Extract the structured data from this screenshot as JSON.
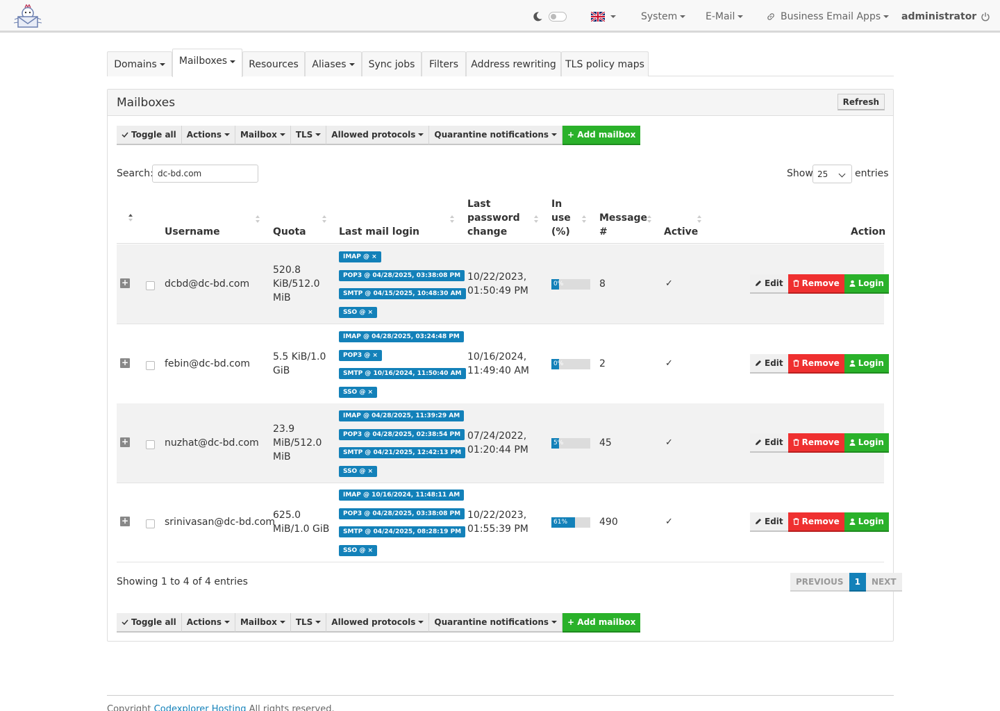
{
  "navbar": {
    "language": "EN",
    "system": "System",
    "email": "E-Mail",
    "apps": "Business Email Apps",
    "user": "administrator"
  },
  "tabs": [
    "Domains",
    "Mailboxes",
    "Resources",
    "Aliases",
    "Sync jobs",
    "Filters",
    "Address rewriting",
    "TLS policy maps"
  ],
  "panel": {
    "title": "Mailboxes",
    "refresh": "Refresh"
  },
  "toolbar": {
    "toggle_all": "Toggle all",
    "actions": "Actions",
    "mailbox": "Mailbox",
    "tls": "TLS",
    "allowed_protocols": "Allowed protocols",
    "quarantine": "Quarantine notifications",
    "add_mailbox": "+ Add mailbox"
  },
  "search": {
    "label": "Search:",
    "value": "dc-bd.com"
  },
  "length": {
    "show": "Show",
    "value": "25",
    "entries": "entries"
  },
  "columns": {
    "username": "Username",
    "quota": "Quota",
    "last_login": "Last mail login",
    "last_pw_1": "Last",
    "last_pw_2": "password",
    "last_pw_3": "change",
    "inuse_1": "In",
    "inuse_2": "use",
    "inuse_3": "(%)",
    "msg_1": "Message",
    "msg_2": "#",
    "active": "Active",
    "action": "Action"
  },
  "rows": [
    {
      "username": "dcbd@dc-bd.com",
      "quota": [
        "520.8",
        "KiB/512.0",
        "MiB"
      ],
      "logins": [
        "IMAP @ ×",
        "POP3 @ 04/28/2025, 03:38:08 PM",
        "SMTP @ 04/15/2025, 10:48:30 AM",
        "SSO @ ×"
      ],
      "pw_change": [
        "10/22/2023,",
        "01:50:49 PM"
      ],
      "inuse": "0%",
      "inuse_value": 0,
      "messages": "8"
    },
    {
      "username": "febin@dc-bd.com",
      "quota": [
        "5.5 KiB/1.0",
        "GiB"
      ],
      "logins": [
        "IMAP @ 04/28/2025, 03:24:48 PM",
        "POP3 @ ×",
        "SMTP @ 10/16/2024, 11:50:40 AM",
        "SSO @ ×"
      ],
      "pw_change": [
        "10/16/2024,",
        "11:49:40 AM"
      ],
      "inuse": "0%",
      "inuse_value": 0,
      "messages": "2"
    },
    {
      "username": "nuzhat@dc-bd.com",
      "quota": [
        "23.9",
        "MiB/512.0",
        "MiB"
      ],
      "logins": [
        "IMAP @ 04/28/2025, 11:39:29 AM",
        "POP3 @ 04/28/2025, 02:38:54 PM",
        "SMTP @ 04/21/2025, 12:42:13 PM",
        "SSO @ ×"
      ],
      "pw_change": [
        "07/24/2022,",
        "01:20:44 PM"
      ],
      "inuse": "5%",
      "inuse_value": 5,
      "messages": "45"
    },
    {
      "username": "srinivasan@dc-bd.com",
      "quota": [
        "625.0",
        "MiB/1.0 GiB"
      ],
      "logins": [
        "IMAP @ 10/16/2024, 11:48:11 AM",
        "POP3 @ 04/28/2025, 03:38:08 PM",
        "SMTP @ 04/24/2025, 08:28:19 PM",
        "SSO @ ×"
      ],
      "pw_change": [
        "10/22/2023,",
        "01:55:39 PM"
      ],
      "inuse": "61%",
      "inuse_value": 61,
      "messages": "490"
    }
  ],
  "row_actions": {
    "edit": "Edit",
    "remove": "Remove",
    "login": "Login"
  },
  "info": "Showing 1 to 4 of 4 entries",
  "pager": {
    "previous": "PREVIOUS",
    "page": "1",
    "next": "NEXT"
  },
  "footer": {
    "prefix": "Copyright",
    "link": "Codexplorer Hosting",
    "suffix": "All rights reserved."
  },
  "colors": {
    "primary": "#1381b9",
    "success": "#2ab12a",
    "danger": "#ef3030"
  }
}
